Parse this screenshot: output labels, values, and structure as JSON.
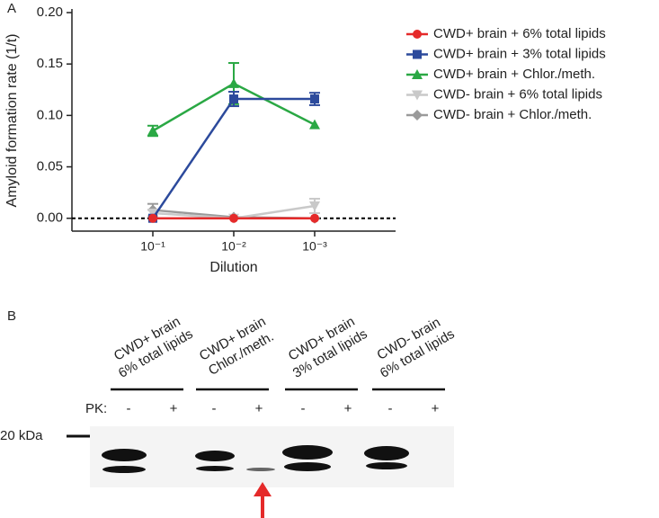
{
  "chart_data": {
    "type": "line",
    "panel_label": "A",
    "y_label": "Amyloid formation rate (1/t)",
    "x_label": "Dilution",
    "categories": [
      "10⁻¹",
      "10⁻²",
      "10⁻³"
    ],
    "ylim": [
      -0.0125,
      0.2
    ],
    "yticks": [
      {
        "value": 0,
        "label": "0.00"
      },
      {
        "value": 0.05,
        "label": "0.05"
      },
      {
        "value": 0.1,
        "label": "0.10"
      },
      {
        "value": 0.15,
        "label": "0.15"
      },
      {
        "value": 0.2,
        "label": "0.20"
      }
    ],
    "hline": 0,
    "hline_style": "dashed",
    "legend": "right",
    "series": [
      {
        "name": "CWD+ brain + 6% total lipids",
        "color": "#e52a2a",
        "marker": "circle",
        "values": [
          0,
          0,
          0
        ],
        "errors": [
          0,
          0,
          0
        ]
      },
      {
        "name": "CWD+ brain + 3% total lipids",
        "color": "#2c4a9c",
        "marker": "square",
        "values": [
          0,
          0.116,
          0.116
        ],
        "errors": [
          0,
          0.007,
          0.006
        ]
      },
      {
        "name": "CWD+ brain + Chlor./meth.",
        "color": "#2aa844",
        "marker": "triangle",
        "values": [
          0.085,
          0.131,
          0.091
        ],
        "errors": [
          0.005,
          0.02,
          0
        ]
      },
      {
        "name": "CWD- brain + 6% total lipids",
        "color": "#c9c9c9",
        "marker": "triangle-down",
        "values": [
          0.005,
          0,
          0.012
        ],
        "errors": [
          0.003,
          0,
          0.007
        ]
      },
      {
        "name": "CWD- brain + Chlor./meth.",
        "color": "#9a9a9a",
        "marker": "diamond",
        "values": [
          0.008,
          0.001,
          0
        ],
        "errors": [
          0.006,
          0,
          0
        ]
      }
    ]
  },
  "blot": {
    "panel_label": "B",
    "pk_label": "PK:",
    "pk_signs": [
      "-",
      "+"
    ],
    "marker": "20 kDa",
    "lanes": [
      {
        "line1": "CWD+ brain",
        "line2": "6% total lipids"
      },
      {
        "line1": "CWD+ brain",
        "line2": "Chlor./meth."
      },
      {
        "line1": "CWD+ brain",
        "line2": "3% total lipids"
      },
      {
        "line1": "CWD- brain",
        "line2": "6% total lipids"
      }
    ]
  }
}
